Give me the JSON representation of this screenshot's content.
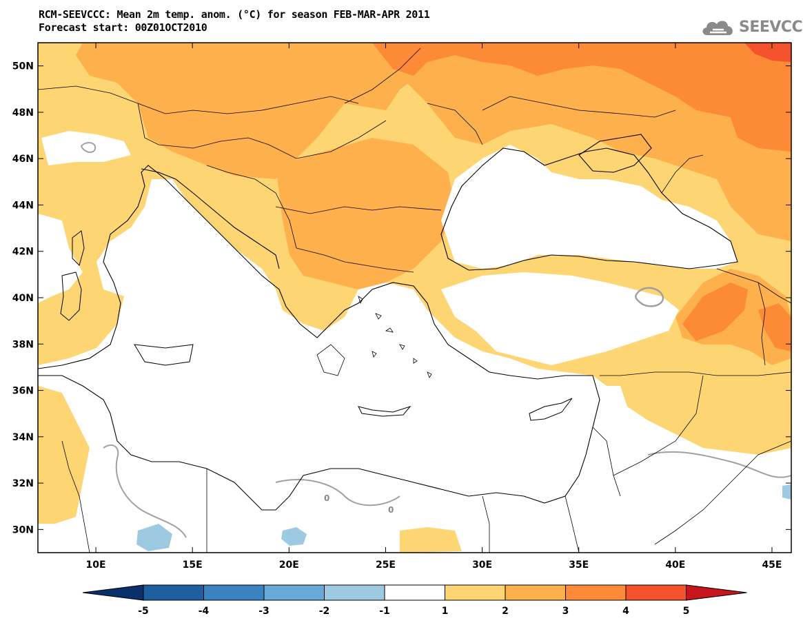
{
  "header": {
    "title_line1": "RCM-SEEVCCC: Mean 2m temp. anom. (°C) for season FEB-MAR-APR 2011",
    "title_line2": "Forecast start: 00Z01OCT2010",
    "logo_text": "SEEVCCC",
    "logo_icon": "cloud-icon"
  },
  "map": {
    "lon_ticks": [
      "10E",
      "15E",
      "20E",
      "25E",
      "30E",
      "35E",
      "40E",
      "45E"
    ],
    "lat_ticks": [
      "50N",
      "48N",
      "46N",
      "44N",
      "42N",
      "40N",
      "38N",
      "36N",
      "34N",
      "32N",
      "30N"
    ],
    "lon_range": [
      7,
      46
    ],
    "lat_range": [
      29,
      51
    ],
    "contour_labels": [
      "0",
      "0"
    ]
  },
  "colorbar": {
    "levels": [
      "-5",
      "-4",
      "-3",
      "-2",
      "-1",
      "1",
      "2",
      "3",
      "4",
      "5"
    ],
    "colors": [
      "#08306b",
      "#1f5fa0",
      "#3b82c0",
      "#6aa8d8",
      "#9ecae1",
      "#ffffff",
      "#fdd573",
      "#fdb04b",
      "#fc8a36",
      "#f4512d",
      "#c8141c"
    ]
  }
}
